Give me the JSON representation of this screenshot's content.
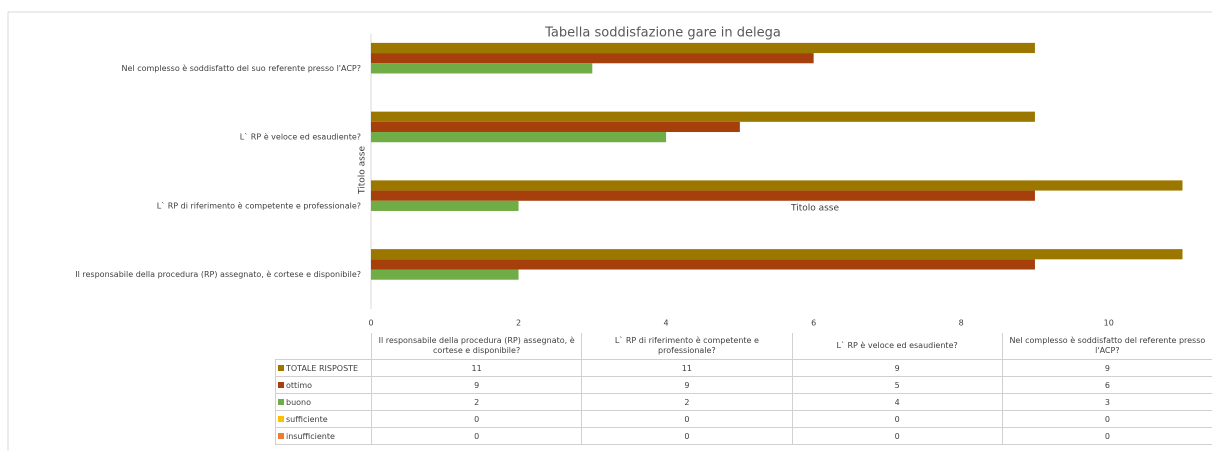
{
  "chart_data": {
    "type": "barh",
    "title": "Tabella soddisfazione gare in delega",
    "x_axis_title": "Titolo asse",
    "y_axis_title": "Titolo asse",
    "categories": [
      "Il responsabile della procedura (RP) assegnato, è cortese e disponibile?",
      "L` RP di riferimento è competente e professionale?",
      "L` RP è veloce ed esaudiente?",
      "Nel complesso è soddisfatto del suo referente presso l'ACP?"
    ],
    "table_categories": [
      "Il responsabile della procedura (RP) assegnato, è cortese e disponibile?",
      "L` RP di riferimento è competente e professionale?",
      "L` RP è veloce ed esaudiente?",
      "Nel complesso è soddisfatto del referente presso l'ACP?"
    ],
    "series": [
      {
        "name": "TOTALE RISPOSTE",
        "color": "#9c7700",
        "values": [
          11,
          11,
          9,
          9
        ]
      },
      {
        "name": "ottimo",
        "color": "#a5400c",
        "values": [
          9,
          9,
          5,
          6
        ]
      },
      {
        "name": "buono",
        "color": "#70ad47",
        "values": [
          2,
          2,
          4,
          3
        ]
      },
      {
        "name": "sufficiente",
        "color": "#ffc000",
        "values": [
          0,
          0,
          0,
          0
        ]
      },
      {
        "name": "insufficiente",
        "color": "#ed7d31",
        "values": [
          0,
          0,
          0,
          0
        ]
      }
    ],
    "xlim": [
      0,
      11.4
    ],
    "xticks": [
      0,
      2,
      4,
      6,
      8,
      10
    ],
    "grid": false
  }
}
